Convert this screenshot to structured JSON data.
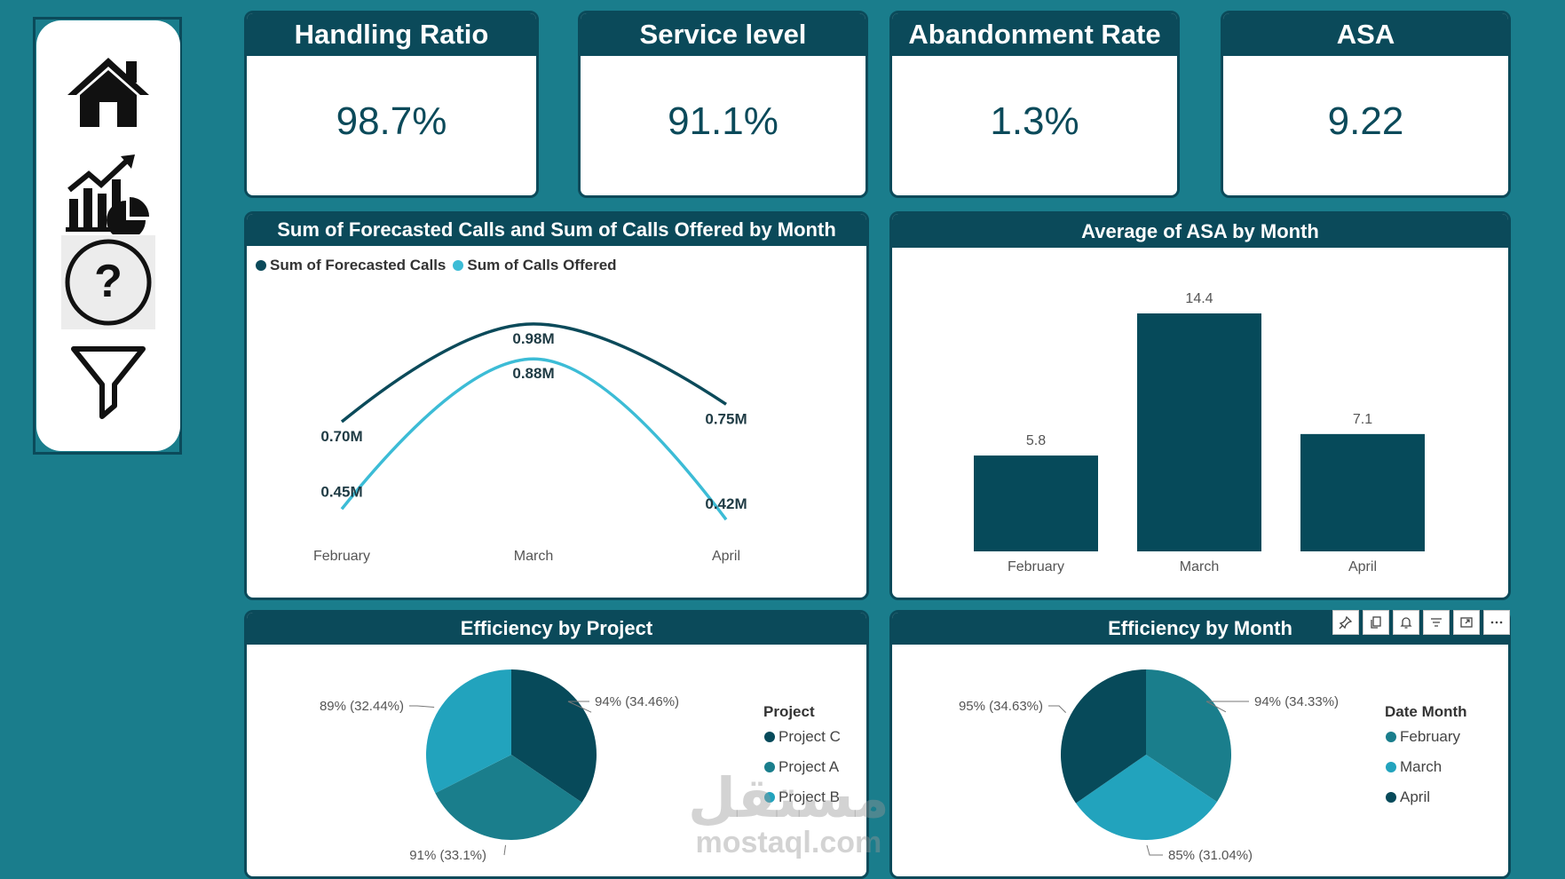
{
  "nav": {
    "items": [
      {
        "icon": "home-icon"
      },
      {
        "icon": "chart-analytics-icon"
      },
      {
        "icon": "help-icon",
        "active": true
      },
      {
        "icon": "filter-icon"
      }
    ]
  },
  "kpis": [
    {
      "title": "Handling Ratio",
      "value": "98.7%"
    },
    {
      "title": "Service level",
      "value": "91.1%"
    },
    {
      "title": "Abandonment Rate",
      "value": "1.3%"
    },
    {
      "title": "ASA",
      "value": "9.22"
    }
  ],
  "colors": {
    "background": "#1a7d8c",
    "header": "#0b4a5a",
    "forecasted": "#0b4a5a",
    "offered": "#3cbcd6",
    "bar": "#064a5a",
    "pie_dark": "#074a5a",
    "pie_mid": "#1a7e8c",
    "pie_light": "#22a3bd"
  },
  "chart_data": [
    {
      "type": "line",
      "title": "Sum of Forecasted Calls and Sum of Calls Offered by Month",
      "categories": [
        "February",
        "March",
        "April"
      ],
      "series": [
        {
          "name": "Sum of Forecasted Calls",
          "values": [
            0.7,
            0.98,
            0.75
          ],
          "labels": [
            "0.70M",
            "0.98M",
            "0.75M"
          ]
        },
        {
          "name": "Sum of Calls Offered",
          "values": [
            0.45,
            0.88,
            0.42
          ],
          "labels": [
            "0.45M",
            "0.88M",
            "0.42M"
          ]
        }
      ]
    },
    {
      "type": "bar",
      "title": "Average of ASA by Month",
      "categories": [
        "February",
        "March",
        "April"
      ],
      "values": [
        5.8,
        14.4,
        7.1
      ],
      "labels": [
        "5.8",
        "14.4",
        "7.1"
      ]
    },
    {
      "type": "pie",
      "title": "Efficiency by Project",
      "legend_title": "Project",
      "slices": [
        {
          "name": "Project C",
          "value": 0.94,
          "share": 34.46,
          "label": "94% (34.46%)"
        },
        {
          "name": "Project A",
          "value": 0.91,
          "share": 33.1,
          "label": "91% (33.1%)"
        },
        {
          "name": "Project B",
          "value": 0.89,
          "share": 32.44,
          "label": "89% (32.44%)"
        }
      ]
    },
    {
      "type": "pie",
      "title": "Efficiency by Month",
      "legend_title": "Date Month",
      "slices": [
        {
          "name": "February",
          "value": 0.94,
          "share": 34.33,
          "label": "94% (34.33%)"
        },
        {
          "name": "March",
          "value": 0.85,
          "share": 31.04,
          "label": "85% (31.04%)"
        },
        {
          "name": "April",
          "value": 0.95,
          "share": 34.63,
          "label": "95% (34.63%)"
        }
      ]
    }
  ],
  "visual_toolbar": [
    "pin-icon",
    "copy-icon",
    "bell-icon",
    "filter-icon",
    "focus-mode-icon",
    "more-options-icon"
  ],
  "watermark": {
    "arabic": "مستقل",
    "latin": "mostaql.com"
  }
}
